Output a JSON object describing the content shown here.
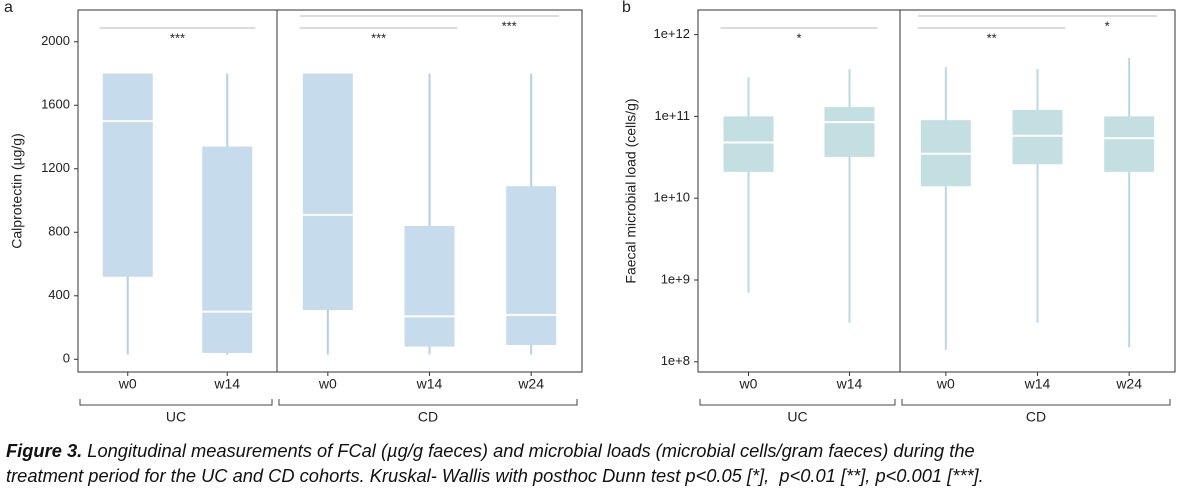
{
  "chart_data": [
    {
      "type": "box",
      "panel_label": "a",
      "y_label": "Calprotectin (µg/g)",
      "color": "#c6dced",
      "whisker_color": "#b3d0e6",
      "ylim": [
        -80,
        2200
      ],
      "yticks": [
        0,
        400,
        800,
        1200,
        1600,
        2000
      ],
      "groups": [
        {
          "name": "UC",
          "categories": [
            "w0",
            "w14"
          ],
          "boxes": [
            {
              "low": 30,
              "q1": 520,
              "median": 1500,
              "q3": 1800,
              "high": 1800
            },
            {
              "low": 30,
              "q1": 40,
              "median": 300,
              "q3": 1340,
              "high": 1800
            }
          ],
          "annotations": [
            {
              "text": "***",
              "from": 0,
              "to": 1
            }
          ]
        },
        {
          "name": "CD",
          "categories": [
            "w0",
            "w14",
            "w24"
          ],
          "boxes": [
            {
              "low": 30,
              "q1": 310,
              "median": 910,
              "q3": 1800,
              "high": 1800
            },
            {
              "low": 30,
              "q1": 80,
              "median": 270,
              "q3": 840,
              "high": 1800
            },
            {
              "low": 30,
              "q1": 90,
              "median": 280,
              "q3": 1090,
              "high": 1800
            }
          ],
          "annotations": [
            {
              "text": "***",
              "from": 0,
              "to": 1
            },
            {
              "text": "***",
              "from": 0,
              "to": 2
            }
          ]
        }
      ]
    },
    {
      "type": "box",
      "panel_label": "b",
      "y_label": "Faecal microbial load (cells/g)",
      "color": "#c4dfe1",
      "whisker_color": "#b8d8e6",
      "yscale": "log",
      "ylim": [
        75000000,
        2000000000000
      ],
      "yticks": [
        {
          "value": 100000000,
          "label": "1e+8"
        },
        {
          "value": 1000000000,
          "label": "1e+9"
        },
        {
          "value": 10000000000,
          "label": "1e+10"
        },
        {
          "value": 100000000000,
          "label": "1e+11"
        },
        {
          "value": 1000000000000,
          "label": "1e+12"
        }
      ],
      "groups": [
        {
          "name": "UC",
          "categories": [
            "w0",
            "w14"
          ],
          "boxes": [
            {
              "low": 700000000,
              "q1": 21000000000,
              "median": 48000000000,
              "q3": 100000000000,
              "high": 300000000000
            },
            {
              "low": 300000000,
              "q1": 32000000000,
              "median": 85000000000,
              "q3": 130000000000,
              "high": 380000000000
            }
          ],
          "annotations": [
            {
              "text": "*",
              "from": 0,
              "to": 1
            }
          ]
        },
        {
          "name": "CD",
          "categories": [
            "w0",
            "w14",
            "w24"
          ],
          "boxes": [
            {
              "low": 140000000,
              "q1": 14000000000,
              "median": 35000000000,
              "q3": 90000000000,
              "high": 400000000000
            },
            {
              "low": 300000000,
              "q1": 26000000000,
              "median": 58000000000,
              "q3": 120000000000,
              "high": 380000000000
            },
            {
              "low": 150000000,
              "q1": 21000000000,
              "median": 54000000000,
              "q3": 100000000000,
              "high": 520000000000
            }
          ],
          "annotations": [
            {
              "text": "**",
              "from": 0,
              "to": 1
            },
            {
              "text": "*",
              "from": 0,
              "to": 2
            }
          ]
        }
      ]
    }
  ],
  "caption": {
    "label": "Figure 3.",
    "lines": [
      "Longitudinal measurements of FCal (µg/g faeces) and microbial loads (microbial cells/gram faeces) during the",
      "treatment period for the UC and CD cohorts. Kruskal- Wallis with posthoc Dunn test p<0.05 [*],  p<0.01 [**], p<0.001 [***]."
    ]
  }
}
